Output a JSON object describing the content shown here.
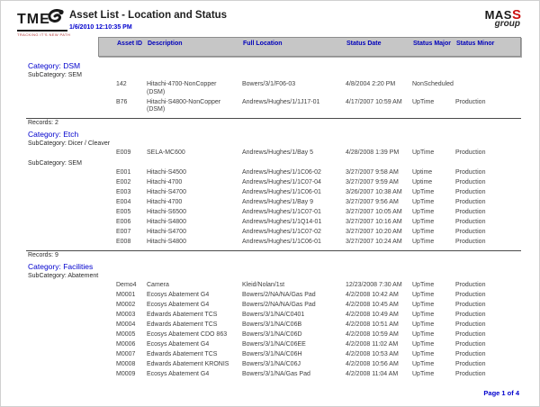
{
  "header": {
    "tme_text": "TME",
    "tme_tagline": "TRACKING IT'S NEW PATH",
    "title": "Asset List - Location and Status",
    "datetime": "1/6/2010 12:10:35 PM",
    "mass_text": "MAS",
    "mass_s": "S",
    "mass_group": "group"
  },
  "table": {
    "columns": [
      "Asset ID",
      "Description",
      "Full Location",
      "Status Date",
      "Status Major",
      "Status Minor"
    ]
  },
  "sections": [
    {
      "category": "Category: DSM",
      "records": "Records: 2",
      "groups": [
        {
          "subcategory": "SubCategory: SEM",
          "rows": [
            [
              "142",
              "Hitachi-4700-NonCopper (DSM)",
              "Bowers/3/1/F06-03",
              "4/8/2004 2:20 PM",
              "NonScheduled",
              ""
            ],
            [
              "B76",
              "Hitachi-S4800-NonCopper (DSM)",
              "Andrews/Hughes/1/1J17-01",
              "4/17/2007 10:59 AM",
              "UpTime",
              "Production"
            ]
          ]
        }
      ]
    },
    {
      "category": "Category: Etch",
      "records": "Records: 9",
      "groups": [
        {
          "subcategory": "SubCategory: Dicer / Cleaver",
          "rows": [
            [
              "E009",
              "SELA-MC600",
              "Andrews/Hughes/1/Bay 5",
              "4/28/2008 1:39 PM",
              "UpTime",
              "Production"
            ]
          ]
        },
        {
          "subcategory": "SubCategory: SEM",
          "rows": [
            [
              "E001",
              "Hitachi-S4500",
              "Andrews/Hughes/1/1C06-02",
              "3/27/2007 9:58 AM",
              "Uptime",
              "Production"
            ],
            [
              "E002",
              "Hitachi-4700",
              "Andrews/Hughes/1/1C07-04",
              "3/27/2007 9:59 AM",
              "Uptime",
              "Production"
            ],
            [
              "E003",
              "Hitachi-S4700",
              "Andrews/Hughes/1/1C06-01",
              "3/26/2007 10:38 AM",
              "UpTime",
              "Production"
            ],
            [
              "E004",
              "Hitachi-4700",
              "Andrews/Hughes/1/Bay 9",
              "3/27/2007 9:56 AM",
              "UpTime",
              "Production"
            ],
            [
              "E005",
              "Hitachi-S6500",
              "Andrews/Hughes/1/1C07-01",
              "3/27/2007 10:05 AM",
              "UpTime",
              "Production"
            ],
            [
              "E006",
              "Hitachi-S4800",
              "Andrews/Hughes/1/1Q14-01",
              "3/27/2007 10:16 AM",
              "UpTime",
              "Production"
            ],
            [
              "E007",
              "Hitachi-S4700",
              "Andrews/Hughes/1/1C07-02",
              "3/27/2007 10:20 AM",
              "UpTime",
              "Production"
            ],
            [
              "E008",
              "Hitachi-S4800",
              "Andrews/Hughes/1/1C06-01",
              "3/27/2007 10:24 AM",
              "UpTime",
              "Production"
            ]
          ]
        }
      ]
    },
    {
      "category": "Category: Facilities",
      "records": null,
      "groups": [
        {
          "subcategory": "SubCategory: Abatement",
          "rows": [
            [
              "Demo4",
              "Camera",
              "Kleid/Nolan/1st",
              "12/23/2008 7:30 AM",
              "UpTime",
              "Production"
            ],
            [
              "M0001",
              "Ecosys Abatement G4",
              "Bowers/2/NA/NA/Gas Pad",
              "4/2/2008 10:42 AM",
              "UpTime",
              "Production"
            ],
            [
              "M0002",
              "Ecosys Abatement G4",
              "Bowers/2/NA/NA/Gas Pad",
              "4/2/2008 10:45 AM",
              "UpTime",
              "Production"
            ],
            [
              "M0003",
              "Edwards Abatement TCS",
              "Bowers/3/1/NA/C0401",
              "4/2/2008 10:49 AM",
              "UpTime",
              "Production"
            ],
            [
              "M0004",
              "Edwards Abatement TCS",
              "Bowers/3/1/NA/C06B",
              "4/2/2008 10:51 AM",
              "UpTime",
              "Production"
            ],
            [
              "M0005",
              "Ecosys Abatement CDO 863",
              "Bowers/3/1/NA/C06D",
              "4/2/2008 10:59 AM",
              "UpTime",
              "Production"
            ],
            [
              "M0006",
              "Ecosys Abatement G4",
              "Bowers/3/1/NA/C06EE",
              "4/2/2008 11:02 AM",
              "UpTime",
              "Production"
            ],
            [
              "M0007",
              "Edwards Abatement TCS",
              "Bowers/3/1/NA/C06H",
              "4/2/2008 10:53 AM",
              "UpTime",
              "Production"
            ],
            [
              "M0008",
              "Edwards Abatement KRONIS",
              "Bowers/3/1/NA/C06J",
              "4/2/2008 10:56 AM",
              "UpTime",
              "Production"
            ],
            [
              "M0009",
              "Ecosys Abatement G4",
              "Bowers/3/1/NA/Gas Pad",
              "4/2/2008 11:04 AM",
              "UpTime",
              "Production"
            ]
          ]
        }
      ]
    }
  ],
  "footer": {
    "page": "Page 1 of 4"
  },
  "colors": {
    "accent_blue": "#0000cd",
    "brand_red": "#cc1111",
    "header_bar": "#c6c6c6"
  }
}
